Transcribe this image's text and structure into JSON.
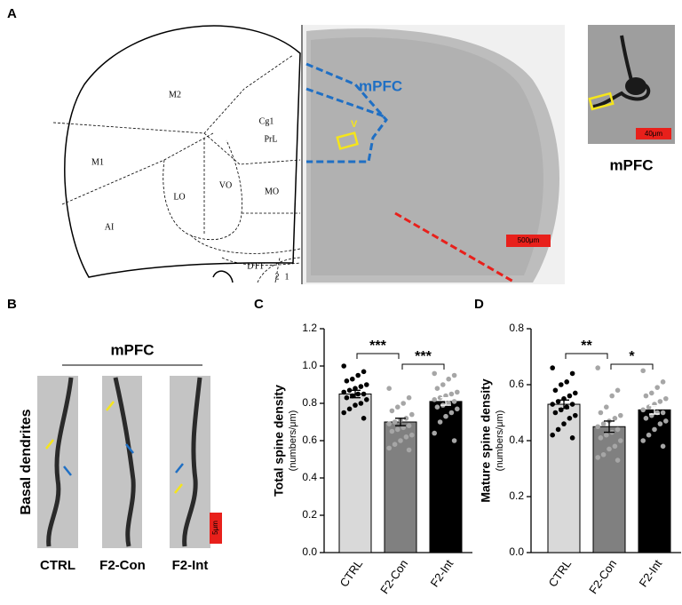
{
  "panels": {
    "a": "A",
    "b": "B",
    "c": "C",
    "d": "D"
  },
  "atlas": {
    "regions": [
      "M2",
      "Cg1",
      "PrL",
      "M1",
      "LO",
      "VO",
      "MO",
      "AI",
      "DTT",
      "2",
      "1"
    ]
  },
  "micrograph": {
    "region": "mPFC",
    "layer": "V",
    "scale": "500μm"
  },
  "inset": {
    "scale": "40μm",
    "label": "mPFC"
  },
  "dendrites": {
    "region": "mPFC",
    "side": "Basal dendrites",
    "scale": "5μm",
    "groups": [
      "CTRL",
      "F2-Con",
      "F2-Int"
    ]
  },
  "chart_data": [
    {
      "type": "bar",
      "y_label": "Total spine density",
      "y_unit": "(numbers/μm)",
      "categories": [
        "CTRL",
        "F2-Con",
        "F2-Int"
      ],
      "values": [
        0.85,
        0.7,
        0.81
      ],
      "errors": [
        0.02,
        0.02,
        0.02
      ],
      "colors": [
        "#d9d9d9",
        "#808080",
        "#000000"
      ],
      "point_colors": [
        "#000000",
        "#a6a6a6",
        "#a6a6a6"
      ],
      "points": [
        [
          1.0,
          0.97,
          0.95,
          0.93,
          0.92,
          0.9,
          0.89,
          0.88,
          0.87,
          0.86,
          0.85,
          0.85,
          0.84,
          0.83,
          0.82,
          0.8,
          0.79,
          0.77,
          0.75,
          0.72
        ],
        [
          0.88,
          0.83,
          0.8,
          0.78,
          0.76,
          0.74,
          0.72,
          0.71,
          0.7,
          0.69,
          0.68,
          0.67,
          0.66,
          0.65,
          0.63,
          0.62,
          0.6,
          0.58,
          0.56,
          0.55
        ],
        [
          0.96,
          0.95,
          0.93,
          0.9,
          0.88,
          0.86,
          0.85,
          0.84,
          0.83,
          0.82,
          0.81,
          0.8,
          0.79,
          0.78,
          0.77,
          0.75,
          0.73,
          0.7,
          0.64,
          0.6
        ]
      ],
      "annotations": [
        "***",
        "***"
      ],
      "ylim": [
        0,
        1.2
      ],
      "yticks": [
        {
          "value": 0,
          "label": "0.0"
        },
        0.2,
        0.4,
        0.6,
        0.8,
        {
          "value": 1,
          "label": "1.0"
        },
        1.2
      ]
    },
    {
      "type": "bar",
      "y_label": "Mature spine density",
      "y_unit": "(numbers/μm)",
      "categories": [
        "CTRL",
        "F2-Con",
        "F2-Int"
      ],
      "values": [
        0.53,
        0.45,
        0.51
      ],
      "errors": [
        0.015,
        0.02,
        0.015
      ],
      "colors": [
        "#d9d9d9",
        "#808080",
        "#000000"
      ],
      "point_colors": [
        "#000000",
        "#a6a6a6",
        "#a6a6a6"
      ],
      "points": [
        [
          0.66,
          0.64,
          0.61,
          0.6,
          0.58,
          0.57,
          0.56,
          0.55,
          0.54,
          0.53,
          0.53,
          0.52,
          0.51,
          0.5,
          0.49,
          0.48,
          0.46,
          0.44,
          0.42,
          0.41
        ],
        [
          0.66,
          0.58,
          0.56,
          0.52,
          0.5,
          0.49,
          0.48,
          0.47,
          0.46,
          0.45,
          0.44,
          0.43,
          0.42,
          0.41,
          0.4,
          0.38,
          0.37,
          0.35,
          0.34,
          0.33
        ],
        [
          0.65,
          0.61,
          0.59,
          0.57,
          0.56,
          0.55,
          0.54,
          0.53,
          0.52,
          0.51,
          0.5,
          0.5,
          0.49,
          0.48,
          0.47,
          0.46,
          0.44,
          0.42,
          0.4,
          0.38
        ]
      ],
      "annotations": [
        "**",
        "*"
      ],
      "ylim": [
        0,
        0.8
      ],
      "yticks": [
        {
          "value": 0,
          "label": "0.0"
        },
        0.2,
        0.4,
        0.6,
        0.8
      ]
    }
  ]
}
